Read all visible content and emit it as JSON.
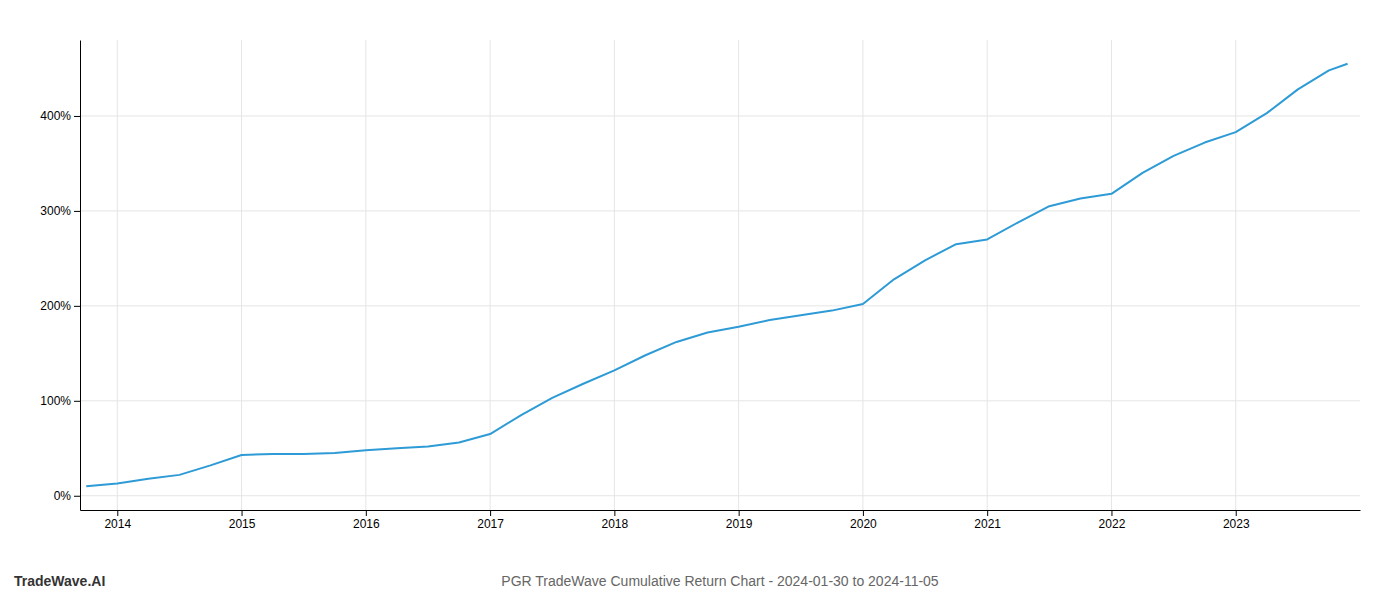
{
  "chart_data": {
    "type": "line",
    "title": "PGR TradeWave Cumulative Return Chart - 2024-01-30 to 2024-11-05",
    "annotations": [
      "TradeWave.AI"
    ],
    "color": "#2e9bd6",
    "grid": true,
    "x": [
      2013.75,
      2014.0,
      2014.25,
      2014.5,
      2014.75,
      2015.0,
      2015.25,
      2015.5,
      2015.75,
      2016.0,
      2016.25,
      2016.5,
      2016.75,
      2017.0,
      2017.25,
      2017.5,
      2017.75,
      2018.0,
      2018.25,
      2018.5,
      2018.75,
      2019.0,
      2019.25,
      2019.5,
      2019.75,
      2020.0,
      2020.25,
      2020.5,
      2020.75,
      2021.0,
      2021.25,
      2021.5,
      2021.75,
      2022.0,
      2022.25,
      2022.5,
      2022.75,
      2023.0,
      2023.25,
      2023.5,
      2023.75,
      2023.9
    ],
    "values": [
      10.0,
      13.0,
      18.0,
      22.0,
      32.0,
      43.0,
      44.0,
      44.0,
      45.0,
      48.0,
      50.0,
      52.0,
      56.0,
      65.0,
      85.0,
      103.0,
      118.0,
      132.0,
      148.0,
      162.0,
      172.0,
      178.0,
      185.0,
      190.0,
      195.0,
      202.0,
      228.0,
      248.0,
      265.0,
      270.0,
      288.0,
      305.0,
      313.0,
      318.0,
      340.0,
      358.0,
      372.0,
      383.0,
      403.0,
      428.0,
      448.0,
      455.0
    ],
    "xlim": [
      2013.7,
      2024.0
    ],
    "ylim": [
      -15,
      480
    ],
    "xticks": [
      2014,
      2015,
      2016,
      2017,
      2018,
      2019,
      2020,
      2021,
      2022,
      2023
    ],
    "yticks": [
      {
        "value": 0,
        "label": "0%"
      },
      {
        "value": 100,
        "label": "100%"
      },
      {
        "value": 200,
        "label": "200%"
      },
      {
        "value": 300,
        "label": "300%"
      },
      {
        "value": 400,
        "label": "400%"
      }
    ]
  }
}
